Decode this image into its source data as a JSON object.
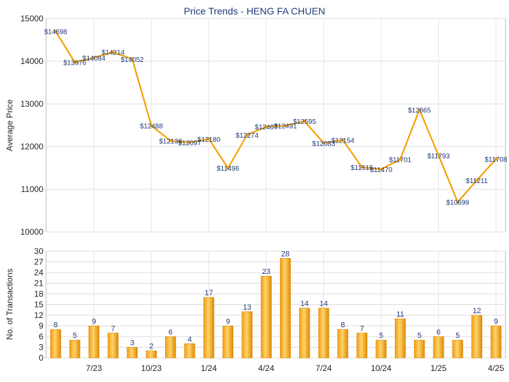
{
  "chart_data": [
    {
      "type": "line",
      "title": "Price Trends - HENG FA CHUEN",
      "ylabel": "Average Price",
      "ylim": [
        10000,
        15000
      ],
      "yticks": [
        10000,
        11000,
        12000,
        13000,
        14000,
        15000
      ],
      "grid": true,
      "line_color": "#F5A000",
      "series": [
        {
          "values": [
            14698,
            13976,
            14084,
            14214,
            14052,
            12488,
            12138,
            12097,
            12180,
            11496,
            12274,
            12467,
            12491,
            12595,
            12083,
            12154,
            11515,
            11470,
            11701,
            12865,
            11793,
            10699,
            11211,
            11708
          ],
          "labels": [
            "$14698",
            "$13976",
            "$14084",
            "$14214",
            "$14052",
            "$12488",
            "$12138",
            "$12097",
            "$12180",
            "$11496",
            "$12274",
            "$12467",
            "$12491",
            "$12595",
            "$12083",
            "$12154",
            "$11515",
            "$11470",
            "$11701",
            "$12865",
            "$11793",
            "$10699",
            "$11211",
            "$11708"
          ]
        }
      ]
    },
    {
      "type": "bar",
      "ylabel": "No. of Transactions",
      "ylim": [
        0,
        30
      ],
      "yticks": [
        0,
        3,
        6,
        9,
        12,
        15,
        18,
        21,
        24,
        27,
        30
      ],
      "grid": true,
      "bar_color": "#F5A000",
      "values": [
        8,
        5,
        9,
        7,
        3,
        2,
        6,
        4,
        17,
        9,
        13,
        23,
        28,
        14,
        14,
        8,
        7,
        5,
        11,
        5,
        6,
        5,
        12,
        9
      ],
      "x_tick_labels": [
        {
          "index": 2,
          "label": "7/23"
        },
        {
          "index": 5,
          "label": "10/23"
        },
        {
          "index": 8,
          "label": "1/24"
        },
        {
          "index": 11,
          "label": "4/24"
        },
        {
          "index": 14,
          "label": "7/24"
        },
        {
          "index": 17,
          "label": "10/24"
        },
        {
          "index": 20,
          "label": "1/25"
        },
        {
          "index": 23,
          "label": "4/25"
        }
      ]
    }
  ]
}
